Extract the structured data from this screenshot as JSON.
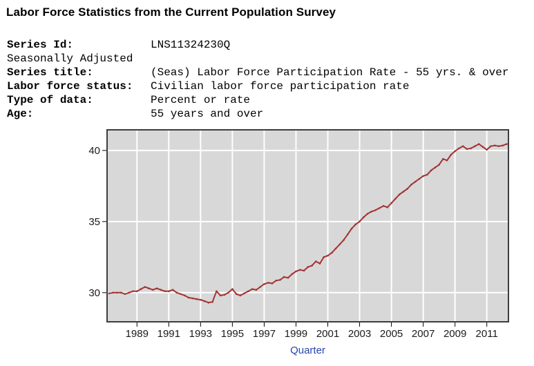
{
  "page": {
    "title": "Labor Force Statistics from the Current Population Survey"
  },
  "series_info": {
    "rows": [
      {
        "label": "Series Id:",
        "value": "LNS11324230Q"
      },
      {
        "label": "Seasonally Adjusted",
        "value": ""
      },
      {
        "label": "Series title:",
        "value": "(Seas) Labor Force Participation Rate - 55 yrs. & over"
      },
      {
        "label": "Labor force status:",
        "value": "Civilian labor force participation rate"
      },
      {
        "label": "Type of data:",
        "value": "Percent or rate"
      },
      {
        "label": "Age:",
        "value": "55 years and over"
      }
    ]
  },
  "chart_data": {
    "type": "line",
    "title": "",
    "xlabel": "Quarter",
    "ylabel": "",
    "series_name": "LNS11324230Q",
    "x_start": 1987.25,
    "x_step": 0.25,
    "values": [
      29.95,
      30.0,
      30.0,
      30.0,
      29.9,
      30.0,
      30.1,
      30.1,
      30.25,
      30.4,
      30.3,
      30.2,
      30.3,
      30.2,
      30.1,
      30.1,
      30.2,
      30.0,
      29.9,
      29.8,
      29.65,
      29.6,
      29.55,
      29.5,
      29.4,
      29.3,
      29.35,
      30.1,
      29.8,
      29.85,
      30.0,
      30.25,
      29.9,
      29.8,
      29.95,
      30.1,
      30.25,
      30.2,
      30.4,
      30.6,
      30.7,
      30.65,
      30.85,
      30.9,
      31.1,
      31.05,
      31.3,
      31.5,
      31.6,
      31.55,
      31.8,
      31.9,
      32.2,
      32.05,
      32.5,
      32.6,
      32.8,
      33.1,
      33.4,
      33.7,
      34.1,
      34.5,
      34.8,
      35.0,
      35.3,
      35.55,
      35.7,
      35.8,
      35.95,
      36.1,
      36.0,
      36.3,
      36.6,
      36.9,
      37.1,
      37.3,
      37.6,
      37.8,
      38.0,
      38.2,
      38.3,
      38.6,
      38.8,
      39.0,
      39.4,
      39.3,
      39.7,
      39.95,
      40.15,
      40.3,
      40.1,
      40.15,
      40.3,
      40.45,
      40.25,
      40.05,
      40.3,
      40.35,
      40.3,
      40.35,
      40.45
    ],
    "x_ticks": [
      1989,
      1991,
      1993,
      1995,
      1997,
      1999,
      2001,
      2003,
      2005,
      2007,
      2009,
      2011
    ],
    "y_ticks": [
      30,
      35,
      40
    ],
    "xlim": [
      1987.12,
      2012.36
    ],
    "ylim": [
      27.95,
      41.45
    ],
    "grid": true,
    "legend": "none",
    "line_color": "#a23333",
    "plot_bg": "#d8d8d8",
    "grid_color": "#ffffff",
    "border_color": "#3c3c3c",
    "axis_text_color": "#1a1a1a",
    "xlabel_color": "#2644ad"
  }
}
